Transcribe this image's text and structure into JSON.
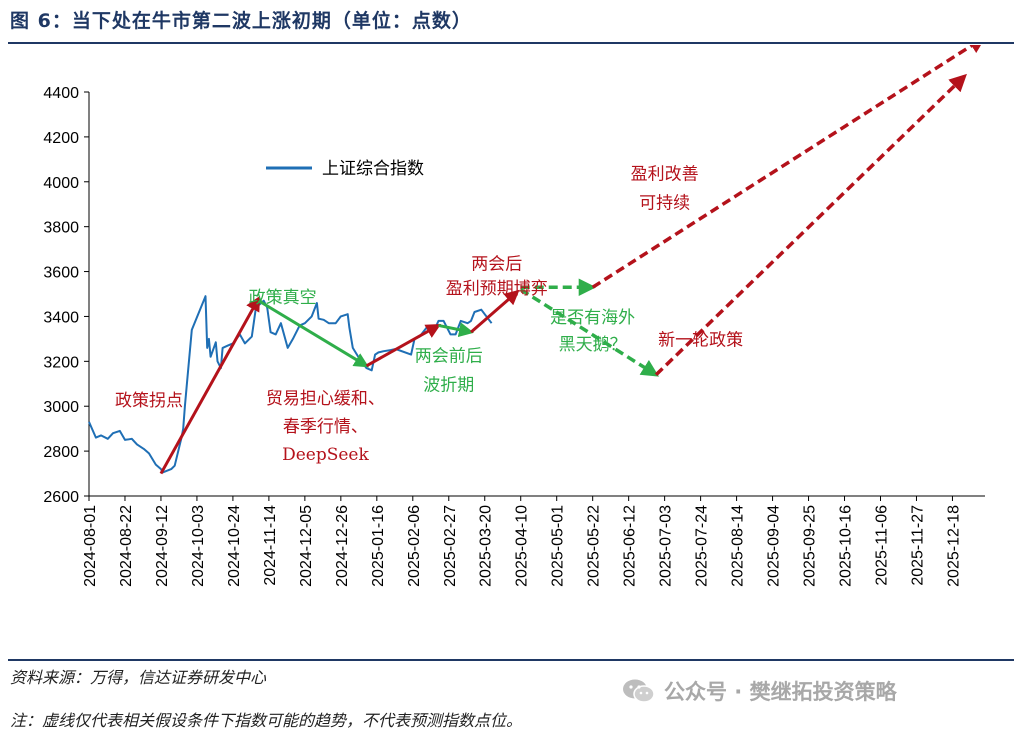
{
  "title": "图 6：当下处在牛市第二波上涨初期（单位：点数）",
  "source": "资料来源：万得，信达证券研发中心",
  "note": "注：虚线仅代表相关假设条件下指数可能的趋势，不代表预测指数点位。",
  "watermark": {
    "icon": "wechat-icon",
    "text": "公众号 · 樊继拓投资策略"
  },
  "colors": {
    "series": "#1f6fb5",
    "red_arrow": "#b4121b",
    "green_arrow": "#2fae4a",
    "red_text": "#b4121b",
    "green_text": "#2fae4a",
    "axis": "#000000"
  },
  "chart_data": {
    "type": "line",
    "title": "",
    "xlabel": "",
    "ylabel": "",
    "ylim": [
      2600,
      4400
    ],
    "yticks": [
      2600,
      2800,
      3000,
      3200,
      3400,
      3600,
      3800,
      4000,
      4200,
      4400
    ],
    "xlim": [
      "2024-08-01",
      "2026-01-06"
    ],
    "xticks": [
      "2024-08-01",
      "2024-08-22",
      "2024-09-12",
      "2024-10-03",
      "2024-10-24",
      "2024-11-14",
      "2024-12-05",
      "2024-12-26",
      "2025-01-16",
      "2025-02-06",
      "2025-02-27",
      "2025-03-20",
      "2025-04-10",
      "2025-05-01",
      "2025-05-22",
      "2025-06-12",
      "2025-07-03",
      "2025-07-24",
      "2025-08-14",
      "2025-09-04",
      "2025-09-25",
      "2025-10-16",
      "2025-11-06",
      "2025-11-27",
      "2025-12-18"
    ],
    "grid": false,
    "legend": {
      "position": "upper-left",
      "entries": [
        "上证综合指数"
      ]
    },
    "series": [
      {
        "name": "上证综合指数",
        "points": [
          [
            "2024-08-01",
            2930
          ],
          [
            "2024-08-05",
            2860
          ],
          [
            "2024-08-08",
            2870
          ],
          [
            "2024-08-12",
            2855
          ],
          [
            "2024-08-15",
            2880
          ],
          [
            "2024-08-19",
            2890
          ],
          [
            "2024-08-22",
            2850
          ],
          [
            "2024-08-26",
            2855
          ],
          [
            "2024-08-29",
            2830
          ],
          [
            "2024-09-02",
            2810
          ],
          [
            "2024-09-05",
            2790
          ],
          [
            "2024-09-09",
            2740
          ],
          [
            "2024-09-12",
            2720
          ],
          [
            "2024-09-13",
            2705
          ],
          [
            "2024-09-18",
            2720
          ],
          [
            "2024-09-20",
            2735
          ],
          [
            "2024-09-24",
            2860
          ],
          [
            "2024-09-25",
            2900
          ],
          [
            "2024-09-26",
            3000
          ],
          [
            "2024-09-27",
            3090
          ],
          [
            "2024-09-30",
            3340
          ],
          [
            "2024-10-08",
            3490
          ],
          [
            "2024-10-09",
            3260
          ],
          [
            "2024-10-10",
            3300
          ],
          [
            "2024-10-11",
            3220
          ],
          [
            "2024-10-14",
            3285
          ],
          [
            "2024-10-15",
            3200
          ],
          [
            "2024-10-17",
            3170
          ],
          [
            "2024-10-18",
            3260
          ],
          [
            "2024-10-21",
            3270
          ],
          [
            "2024-10-24",
            3280
          ],
          [
            "2024-10-28",
            3320
          ],
          [
            "2024-10-31",
            3280
          ],
          [
            "2024-11-04",
            3310
          ],
          [
            "2024-11-07",
            3470
          ],
          [
            "2024-11-08",
            3450
          ],
          [
            "2024-11-11",
            3470
          ],
          [
            "2024-11-13",
            3440
          ],
          [
            "2024-11-15",
            3330
          ],
          [
            "2024-11-18",
            3320
          ],
          [
            "2024-11-21",
            3370
          ],
          [
            "2024-11-25",
            3260
          ],
          [
            "2024-11-28",
            3300
          ],
          [
            "2024-12-02",
            3360
          ],
          [
            "2024-12-05",
            3370
          ],
          [
            "2024-12-09",
            3400
          ],
          [
            "2024-12-10",
            3420
          ],
          [
            "2024-12-12",
            3460
          ],
          [
            "2024-12-13",
            3390
          ],
          [
            "2024-12-16",
            3385
          ],
          [
            "2024-12-19",
            3370
          ],
          [
            "2024-12-23",
            3370
          ],
          [
            "2024-12-26",
            3400
          ],
          [
            "2024-12-30",
            3410
          ],
          [
            "2024-12-31",
            3350
          ],
          [
            "2025-01-02",
            3260
          ],
          [
            "2025-01-06",
            3210
          ],
          [
            "2025-01-10",
            3170
          ],
          [
            "2025-01-13",
            3160
          ],
          [
            "2025-01-15",
            3230
          ],
          [
            "2025-01-17",
            3240
          ],
          [
            "2025-01-20",
            3245
          ],
          [
            "2025-01-24",
            3250
          ],
          [
            "2025-01-27",
            3255
          ],
          [
            "2025-02-05",
            3230
          ],
          [
            "2025-02-07",
            3300
          ],
          [
            "2025-02-10",
            3310
          ],
          [
            "2025-02-14",
            3350
          ],
          [
            "2025-02-18",
            3330
          ],
          [
            "2025-02-21",
            3380
          ],
          [
            "2025-02-24",
            3380
          ],
          [
            "2025-02-28",
            3320
          ],
          [
            "2025-03-03",
            3320
          ],
          [
            "2025-03-06",
            3380
          ],
          [
            "2025-03-10",
            3370
          ],
          [
            "2025-03-12",
            3380
          ],
          [
            "2025-03-14",
            3420
          ],
          [
            "2025-03-18",
            3430
          ],
          [
            "2025-03-20",
            3410
          ],
          [
            "2025-03-24",
            3370
          ]
        ]
      }
    ],
    "arrows": [
      {
        "style": "solid",
        "color": "red",
        "from": [
          "2024-09-12",
          2700
        ],
        "to": [
          "2024-11-08",
          3480
        ]
      },
      {
        "style": "solid",
        "color": "green",
        "from": [
          "2024-11-08",
          3470
        ],
        "to": [
          "2025-01-10",
          3180
        ]
      },
      {
        "style": "solid",
        "color": "red",
        "from": [
          "2025-01-10",
          3180
        ],
        "to": [
          "2025-02-21",
          3360
        ]
      },
      {
        "style": "solid",
        "color": "green",
        "from": [
          "2025-02-21",
          3360
        ],
        "to": [
          "2025-03-12",
          3330
        ]
      },
      {
        "style": "solid",
        "color": "red",
        "from": [
          "2025-03-12",
          3330
        ],
        "to": [
          "2025-04-08",
          3510
        ]
      },
      {
        "style": "dashed",
        "color": "green",
        "from": [
          "2025-04-10",
          3530
        ],
        "to": [
          "2025-05-22",
          3530
        ]
      },
      {
        "style": "dashed",
        "color": "green",
        "from": [
          "2025-04-10",
          3520
        ],
        "to": [
          "2025-06-28",
          3140
        ]
      },
      {
        "style": "dashed",
        "color": "red",
        "from": [
          "2025-05-22",
          3530
        ],
        "to": [
          "2026-01-05",
          4640
        ]
      },
      {
        "style": "dashed",
        "color": "red",
        "from": [
          "2025-06-28",
          3140
        ],
        "to": [
          "2025-12-25",
          4470
        ]
      }
    ],
    "annotations": [
      {
        "text": "政策拐点",
        "color": "red",
        "x": "2024-09-05",
        "y": 3000
      },
      {
        "text": "政策真空",
        "color": "green",
        "x": "2024-11-22",
        "y": 3460
      },
      {
        "text": "贸易担心缓和、",
        "color": "red",
        "x": "2024-12-17",
        "y": 3010
      },
      {
        "text": "春季行情、",
        "color": "red",
        "x": "2024-12-17",
        "y": 2885
      },
      {
        "text": "DeepSeek",
        "color": "red",
        "x": "2024-12-17",
        "y": 2760
      },
      {
        "text": "两会前后",
        "color": "green",
        "x": "2025-02-27",
        "y": 3200
      },
      {
        "text": "波折期",
        "color": "green",
        "x": "2025-02-27",
        "y": 3070
      },
      {
        "text": "两会后",
        "color": "red",
        "x": "2025-03-27",
        "y": 3610
      },
      {
        "text": "盈利预期博弈",
        "color": "red",
        "x": "2025-03-27",
        "y": 3500
      },
      {
        "text": "是否有海外",
        "color": "green",
        "x": "2025-05-22",
        "y": 3370
      },
      {
        "text": "黑天鹅？",
        "color": "green",
        "x": "2025-05-22",
        "y": 3250
      },
      {
        "text": "盈利改善",
        "color": "red",
        "x": "2025-07-03",
        "y": 4010
      },
      {
        "text": "可持续",
        "color": "red",
        "x": "2025-07-03",
        "y": 3880
      },
      {
        "text": "新一轮政策",
        "color": "red",
        "x": "2025-07-24",
        "y": 3270
      }
    ]
  }
}
